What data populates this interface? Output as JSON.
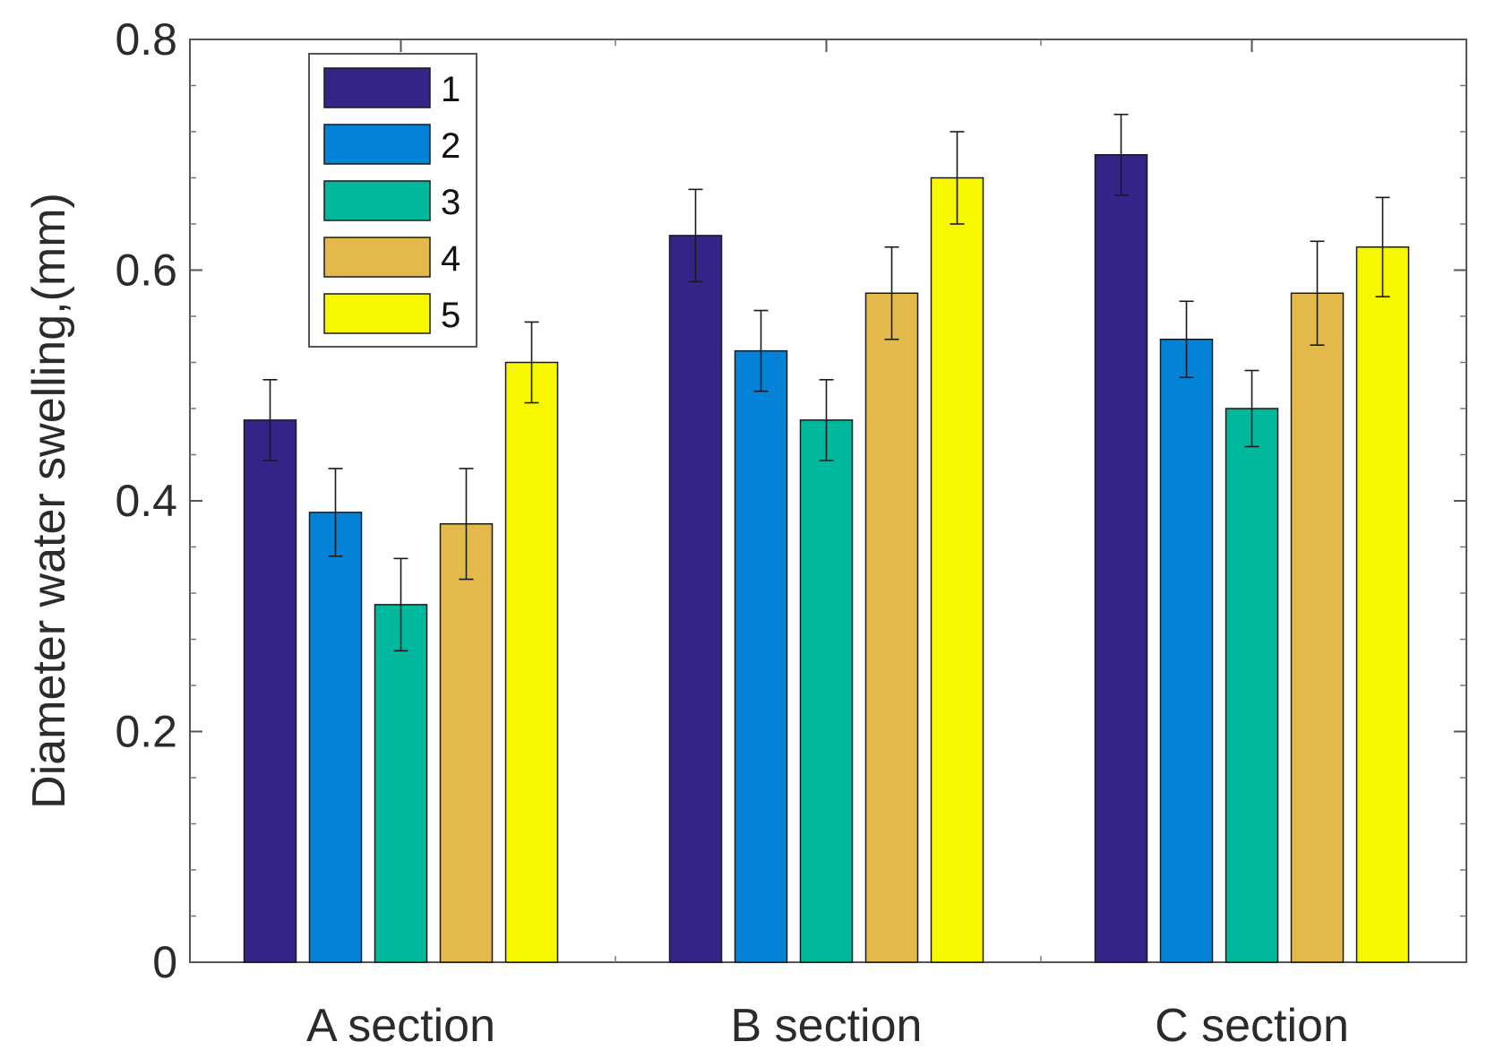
{
  "chart_data": {
    "type": "bar",
    "title": "",
    "xlabel": "",
    "ylabel": "Diameter water swelling,(mm)",
    "ylim": [
      0,
      0.8
    ],
    "yticks": [
      {
        "value": 0,
        "label": "0"
      },
      {
        "value": 0.2,
        "label": "0.2"
      },
      {
        "value": 0.4,
        "label": "0.4"
      },
      {
        "value": 0.6,
        "label": "0.6"
      },
      {
        "value": 0.8,
        "label": "0.8"
      }
    ],
    "categories": [
      "A section",
      "B section",
      "C section"
    ],
    "legend_position": "top-left",
    "series": [
      {
        "name": "1",
        "color": "#352488",
        "values": [
          0.47,
          0.63,
          0.7
        ],
        "errors": [
          0.035,
          0.04,
          0.035
        ]
      },
      {
        "name": "2",
        "color": "#0283D8",
        "values": [
          0.39,
          0.53,
          0.54
        ],
        "errors": [
          0.038,
          0.035,
          0.033
        ]
      },
      {
        "name": "3",
        "color": "#00B89E",
        "values": [
          0.31,
          0.47,
          0.48
        ],
        "errors": [
          0.04,
          0.035,
          0.033
        ]
      },
      {
        "name": "4",
        "color": "#E2B94A",
        "values": [
          0.38,
          0.58,
          0.58
        ],
        "errors": [
          0.048,
          0.04,
          0.045
        ]
      },
      {
        "name": "5",
        "color": "#F7F800",
        "values": [
          0.52,
          0.68,
          0.62
        ],
        "errors": [
          0.035,
          0.04,
          0.043
        ]
      }
    ]
  }
}
